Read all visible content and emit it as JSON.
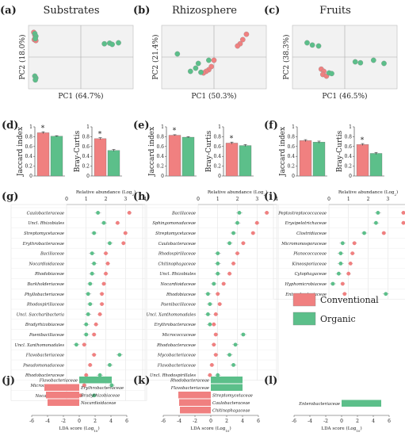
{
  "colors": {
    "conventional": "#f08080",
    "organic": "#5cbf8a",
    "axis": "#888888",
    "grid": "#dddddd"
  },
  "legend": {
    "conventional": "Conventional",
    "organic": "Organic"
  },
  "chart_data": [
    {
      "id": "a",
      "type": "scatter",
      "panel_label": "(a)",
      "title": "Substrates",
      "xlabel": "PC1 (64.7%)",
      "ylabel": "PC2 (18.0%)",
      "xlim": [
        -1,
        1
      ],
      "ylim": [
        -1,
        1
      ],
      "series": [
        {
          "group": "conventional",
          "points": [
            [
              -0.9,
              0.78
            ],
            [
              -0.88,
              0.7
            ],
            [
              -0.87,
              0.62
            ],
            [
              -0.89,
              0.55
            ],
            [
              -0.86,
              0.52
            ]
          ]
        },
        {
          "group": "organic",
          "points": [
            [
              -0.88,
              0.74
            ],
            [
              -0.86,
              0.66
            ],
            [
              -0.87,
              0.58
            ],
            [
              -0.88,
              -0.6
            ],
            [
              -0.86,
              -0.66
            ],
            [
              -0.87,
              -0.72
            ],
            [
              0.45,
              0.42
            ],
            [
              0.55,
              0.44
            ],
            [
              0.6,
              0.4
            ],
            [
              0.72,
              0.45
            ]
          ]
        }
      ]
    },
    {
      "id": "b",
      "type": "scatter",
      "panel_label": "(b)",
      "title": "Rhizosphere",
      "xlabel": "PC1 (50.3%)",
      "ylabel": "PC2 (21.4%)",
      "xlim": [
        -1,
        1
      ],
      "ylim": [
        -1,
        1
      ],
      "series": [
        {
          "group": "conventional",
          "points": [
            [
              0.62,
              0.72
            ],
            [
              0.55,
              0.55
            ],
            [
              0.5,
              0.42
            ],
            [
              0.45,
              0.35
            ],
            [
              0.0,
              -0.1
            ],
            [
              -0.05,
              -0.3
            ],
            [
              -0.1,
              -0.4
            ],
            [
              -0.15,
              -0.45
            ],
            [
              -0.2,
              -0.5
            ]
          ]
        },
        {
          "group": "organic",
          "points": [
            [
              -0.7,
              0.1
            ],
            [
              -0.1,
              -0.1
            ],
            [
              -0.3,
              -0.2
            ],
            [
              -0.35,
              -0.35
            ],
            [
              -0.45,
              -0.45
            ],
            [
              -0.25,
              -0.48
            ]
          ]
        }
      ]
    },
    {
      "id": "c",
      "type": "scatter",
      "panel_label": "(c)",
      "title": "Fruits",
      "xlabel": "PC1 (46.5%)",
      "ylabel": "PC2 (38.3%)",
      "xlim": [
        -1,
        1
      ],
      "ylim": [
        -1,
        1
      ],
      "series": [
        {
          "group": "conventional",
          "points": [
            [
              -0.45,
              -0.38
            ],
            [
              -0.4,
              -0.45
            ],
            [
              -0.42,
              -0.55
            ],
            [
              -0.35,
              -0.6
            ]
          ]
        },
        {
          "group": "organic",
          "points": [
            [
              -0.72,
              0.45
            ],
            [
              -0.62,
              0.38
            ],
            [
              -0.5,
              0.35
            ],
            [
              0.2,
              -0.15
            ],
            [
              0.3,
              -0.18
            ],
            [
              0.55,
              -0.1
            ],
            [
              0.75,
              -0.2
            ],
            [
              -0.3,
              -0.5
            ],
            [
              -0.25,
              -0.52
            ]
          ]
        }
      ]
    },
    {
      "id": "d",
      "type": "bar",
      "panel_label": "(d)",
      "subplots": [
        {
          "ylabel": "Jaccard index",
          "yticks": [
            0,
            0.2,
            0.4,
            0.6,
            0.8,
            1
          ],
          "ylim": [
            0,
            1
          ],
          "values": [
            0.88,
            0.81
          ],
          "errors": [
            0.02,
            0.01
          ],
          "significance": "*"
        },
        {
          "ylabel": "Bray-Curtis",
          "yticks": [
            0,
            0.2,
            0.4,
            0.6,
            0.8,
            1
          ],
          "ylim": [
            0,
            1
          ],
          "values": [
            0.76,
            0.52
          ],
          "errors": [
            0.02,
            0.02
          ],
          "significance": "*"
        }
      ]
    },
    {
      "id": "e",
      "type": "bar",
      "panel_label": "(e)",
      "subplots": [
        {
          "ylabel": "Jaccard index",
          "yticks": [
            0,
            0.2,
            0.4,
            0.6,
            0.8,
            1
          ],
          "ylim": [
            0,
            1
          ],
          "values": [
            0.83,
            0.79
          ],
          "errors": [
            0.01,
            0.01
          ],
          "significance": "*"
        },
        {
          "ylabel": "Bray-Curtis",
          "yticks": [
            0,
            0.2,
            0.4,
            0.6,
            0.8,
            1
          ],
          "ylim": [
            0,
            1
          ],
          "values": [
            0.67,
            0.62
          ],
          "errors": [
            0.02,
            0.02
          ],
          "significance": "*"
        }
      ]
    },
    {
      "id": "f",
      "type": "bar",
      "panel_label": "(f)",
      "subplots": [
        {
          "ylabel": "Jaccard index",
          "yticks": [
            0,
            0.2,
            0.4,
            0.6,
            0.8,
            1
          ],
          "ylim": [
            0,
            1
          ],
          "values": [
            0.72,
            0.69
          ],
          "errors": [
            0.02,
            0.02
          ],
          "significance": ""
        },
        {
          "ylabel": "Bray-Curtis",
          "yticks": [
            0,
            0.2,
            0.4,
            0.6,
            0.8,
            1
          ],
          "ylim": [
            0,
            1
          ],
          "values": [
            0.64,
            0.46
          ],
          "errors": [
            0.02,
            0.02
          ],
          "significance": "*"
        }
      ]
    },
    {
      "id": "g",
      "type": "dot",
      "panel_label": "(g)",
      "xlabel": "Relative abundance (Log",
      "xlabel_sub": "2",
      "xlabel_end": ")",
      "xticks": [
        0,
        1,
        2,
        3,
        4
      ],
      "xlim": [
        0,
        4
      ],
      "taxa": [
        "Caulobacteraceae",
        "Uncl. Rhizobiales",
        "Streptomycetaceae",
        "Erythrobacteraceae",
        "Bacillaceae",
        "Nocardioidaceae",
        "Rhodobiaceae",
        "Burkholderiaceae",
        "Phyllobacteriaceae",
        "Rhodospirillaceae",
        "Uncl. Saccharibacteria",
        "Bradyrhizobiaceae",
        "Paenibacillaceae",
        "Uncl. Xanthomonadales",
        "Flavobacteriaceae",
        "Pseudomonadaceae",
        "Rhodobacteraceae",
        "Micrococcaceae",
        "Nocardiaceae"
      ],
      "conventional": [
        3.2,
        2.6,
        3.0,
        2.9,
        2.0,
        2.1,
        2.0,
        1.9,
        1.8,
        1.8,
        1.7,
        1.5,
        1.4,
        0.9,
        1.4,
        1.2,
        1.0,
        0.9,
        0.7
      ],
      "organic": [
        1.6,
        1.9,
        1.4,
        2.2,
        1.3,
        1.4,
        1.3,
        1.2,
        1.1,
        1.2,
        1.1,
        1.0,
        1.0,
        0.5,
        2.7,
        2.2,
        1.7,
        2.3,
        1.4
      ]
    },
    {
      "id": "h",
      "type": "dot",
      "panel_label": "(h)",
      "xlabel": "Relative abundance (Log",
      "xlabel_sub": "2",
      "xlabel_end": ")",
      "xticks": [
        0,
        1,
        2,
        3,
        4
      ],
      "xlim": [
        0,
        4
      ],
      "taxa": [
        "Bacillaceae",
        "Sphingomonadaceae",
        "Streptomycetaceae",
        "Caulobacteraceae",
        "Rhodospirillaceae",
        "Chitinophagaceae",
        "Uncl. Rhizobiales",
        "Nocardioidaceae",
        "Rhodobiaceae",
        "Paenibacillaceae",
        "Uncl. Xanthomonadales",
        "Erythrobacteraceae",
        "Micrococcaceae",
        "Rhodobacteraceae",
        "Mycobacteriaceae",
        "Flavobacteriaceae",
        "Uncl. Rhodospirillales"
      ],
      "conventional": [
        3.5,
        3.0,
        2.8,
        2.3,
        2.0,
        1.8,
        1.6,
        1.3,
        1.0,
        1.1,
        0.9,
        0.8,
        0.9,
        0.8,
        0.9,
        0.7,
        0.6
      ],
      "organic": [
        2.1,
        2.0,
        1.8,
        1.6,
        1.0,
        1.0,
        1.0,
        0.8,
        0.5,
        0.6,
        0.5,
        0.6,
        2.3,
        1.9,
        1.6,
        1.8,
        1.0
      ]
    },
    {
      "id": "i",
      "type": "dot",
      "panel_label": "(i)",
      "xlabel": "Relative abundance (Log",
      "xlabel_sub": "2",
      "xlabel_end": ")",
      "xticks": [
        0,
        1,
        2,
        3,
        4
      ],
      "xlim": [
        0,
        4
      ],
      "taxa": [
        "Peptostreptococcaceae",
        "Erysipelotrichaceae",
        "Clostridiaceae",
        "Micromonosporaceae",
        "Planococcaceae",
        "Kineosporiaceae",
        "Cytophagaceae",
        "Hyphomicrobiaceae",
        "Enterobacteriaceae"
      ],
      "conventional": [
        3.8,
        3.8,
        2.8,
        1.3,
        1.2,
        1.1,
        1.0,
        0.7,
        0.8
      ],
      "organic": [
        2.5,
        2.4,
        1.8,
        0.7,
        0.6,
        0.6,
        0.5,
        0.2,
        2.9
      ]
    },
    {
      "id": "j",
      "type": "bar-horizontal",
      "panel_label": "(j)",
      "xlabel": "LDA score (Log",
      "xlabel_sub": "10",
      "xlabel_end": ")",
      "xticks": [
        -6,
        -4,
        -2,
        0,
        2,
        4,
        6
      ],
      "xlim": [
        -6,
        6
      ],
      "bars": [
        {
          "label": "Flavobacteriaceae",
          "value": 4.1,
          "group": "organic"
        },
        {
          "label": "Erythrobacteriaceae",
          "value": -4.4,
          "group": "conventional"
        },
        {
          "label": "Bradyrhizobiaceae",
          "value": -4.2,
          "group": "conventional"
        },
        {
          "label": "Nocardioidaceae",
          "value": -4.0,
          "group": "conventional"
        }
      ]
    },
    {
      "id": "k",
      "type": "bar-horizontal",
      "panel_label": "(k)",
      "xlabel": "LDA score (Log",
      "xlabel_sub": "10",
      "xlabel_end": ")",
      "xticks": [
        -6,
        -4,
        -2,
        0,
        2,
        4,
        6
      ],
      "xlim": [
        -6,
        6
      ],
      "bars": [
        {
          "label": "Rhodobacteraceae",
          "value": 4.0,
          "group": "organic"
        },
        {
          "label": "Flavobacteriaceae",
          "value": 4.0,
          "group": "organic"
        },
        {
          "label": "Streptomycetaceae",
          "value": -4.1,
          "group": "conventional"
        },
        {
          "label": "Caulobacteraceae",
          "value": -4.0,
          "group": "conventional"
        },
        {
          "label": "Chitinophagaceae",
          "value": -3.9,
          "group": "conventional"
        }
      ]
    },
    {
      "id": "l",
      "type": "bar-horizontal",
      "panel_label": "(l)",
      "xlabel": "LDA score (Log",
      "xlabel_sub": "10",
      "xlabel_end": ")",
      "xticks": [
        -6,
        -4,
        -2,
        0,
        2,
        4,
        6
      ],
      "xlim": [
        -6,
        6
      ],
      "bars": [
        {
          "label": "Enterobacteriaceae",
          "value": 5.0,
          "group": "organic"
        }
      ]
    }
  ]
}
